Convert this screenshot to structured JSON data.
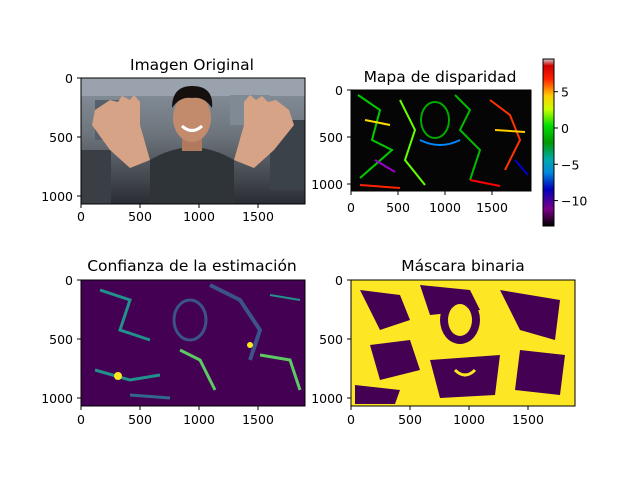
{
  "figure": {
    "panels": [
      {
        "id": "original",
        "title": "Imagen Original",
        "image": "photo of a young man with curly hair smiling and raising both open hands in a lab/workshop",
        "x_ticks": [
          "0",
          "500",
          "1000",
          "1500"
        ],
        "y_ticks": [
          "0",
          "500",
          "1000"
        ]
      },
      {
        "id": "disparity",
        "title": "Mapa de disparidad",
        "image": "false-color disparity map, mostly dark with green/yellow/red/blue edge textures",
        "x_ticks": [
          "0",
          "500",
          "1000",
          "1500"
        ],
        "y_ticks": [
          "0",
          "500",
          "1000"
        ],
        "colorbar": {
          "colormap": "nipy_spectral",
          "range": [
            -13.5,
            9.5
          ],
          "ticks": [
            "5",
            "0",
            "−5",
            "−10"
          ],
          "tick_values": [
            5,
            0,
            -5,
            -10
          ]
        }
      },
      {
        "id": "confidence",
        "title": "Confianza de la estimación",
        "image": "viridis confidence map, mostly dark purple with teal/green/yellow highlights along edges",
        "x_ticks": [
          "0",
          "500",
          "1000",
          "1500"
        ],
        "y_ticks": [
          "0",
          "500",
          "1000"
        ]
      },
      {
        "id": "mask",
        "title": "Máscara binaria",
        "image": "binary mask, purple background with yellow regions outlining the person and scene",
        "x_ticks": [
          "0",
          "500",
          "1000",
          "1500"
        ],
        "y_ticks": [
          "0",
          "500",
          "1000"
        ]
      }
    ],
    "colors": {
      "viridis_dark": "#440154",
      "viridis_teal": "#21918c",
      "viridis_green": "#5ec962",
      "viridis_yellow": "#fde725"
    }
  }
}
